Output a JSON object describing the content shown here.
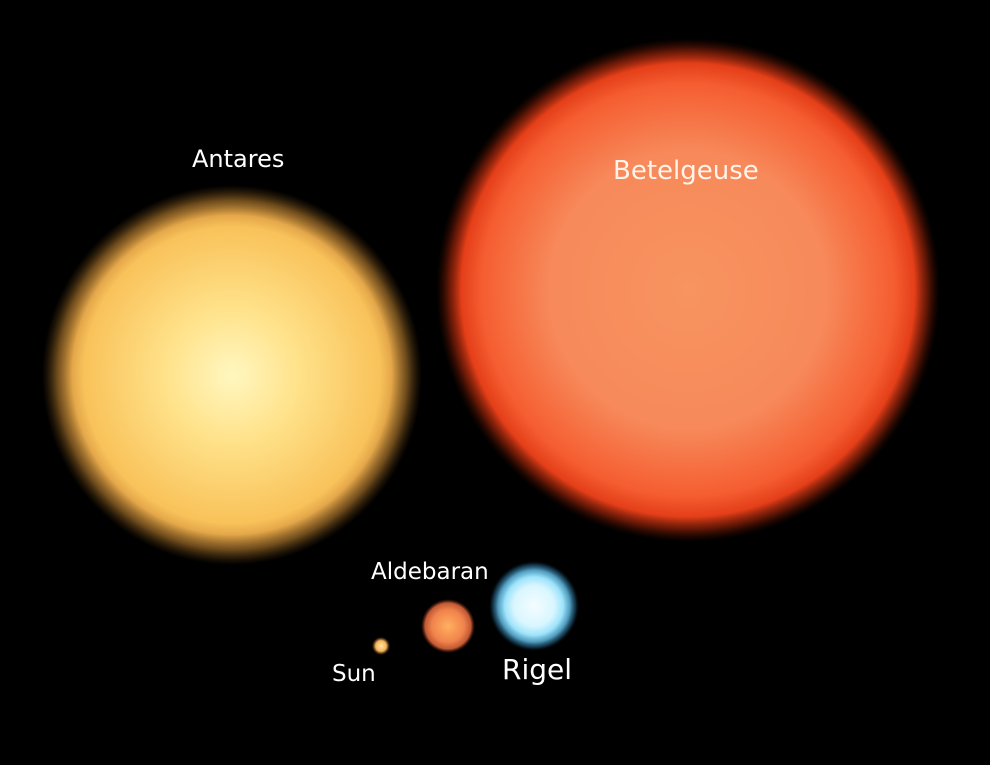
{
  "stars": {
    "antares": {
      "name": "Antares",
      "color": "#f7c35a"
    },
    "betelgeuse": {
      "name": "Betelgeuse",
      "color": "#f5522a"
    },
    "aldebaran": {
      "name": "Aldebaran",
      "color": "#f0814a"
    },
    "rigel": {
      "name": "Rigel",
      "color": "#c9f1ff"
    },
    "sun": {
      "name": "Sun",
      "color": "#f4b25a"
    }
  }
}
